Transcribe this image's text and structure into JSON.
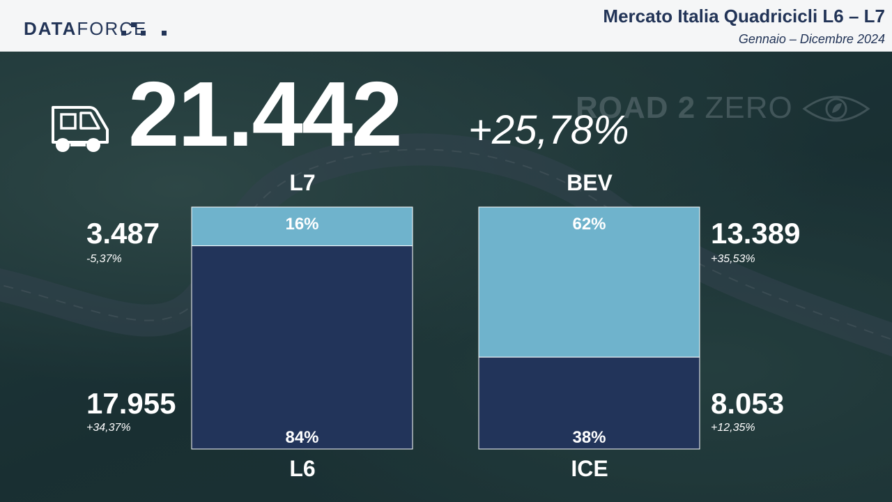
{
  "header": {
    "logo_bold": "DATA",
    "logo_light": "FORCE",
    "title": "Mercato Italia Quadricicli L6 – L7",
    "subtitle": "Gennaio – Dicembre 2024"
  },
  "watermark": {
    "road": "ROAD 2",
    "zero": "ZERO"
  },
  "total": {
    "value": "21.442",
    "change": "+25,78%"
  },
  "icons": {
    "vehicle": "quadricycle-van-icon",
    "watermark_eye": "eye-leaf-icon"
  },
  "colors": {
    "dark_segment": "#22345a",
    "light_segment": "#6fb3cc"
  },
  "segments": {
    "l7": {
      "label": "L7",
      "value": "3.487",
      "change": "-5,37%"
    },
    "l6": {
      "label": "L6",
      "value": "17.955",
      "change": "+34,37%"
    },
    "bev": {
      "label": "BEV",
      "value": "13.389",
      "change": "+35,53%"
    },
    "ice": {
      "label": "ICE",
      "value": "8.053",
      "change": "+12,35%"
    }
  },
  "chart_data": [
    {
      "type": "bar",
      "stacked": true,
      "categories": [
        "L6 / L7"
      ],
      "series": [
        {
          "name": "L6",
          "values": [
            84
          ],
          "label": "84%"
        },
        {
          "name": "L7",
          "values": [
            16
          ],
          "label": "16%"
        }
      ],
      "ylim": [
        0,
        100
      ]
    },
    {
      "type": "bar",
      "stacked": true,
      "categories": [
        "ICE / BEV"
      ],
      "series": [
        {
          "name": "ICE",
          "values": [
            38
          ],
          "label": "38%"
        },
        {
          "name": "BEV",
          "values": [
            62
          ],
          "label": "62%"
        }
      ],
      "ylim": [
        0,
        100
      ]
    }
  ]
}
